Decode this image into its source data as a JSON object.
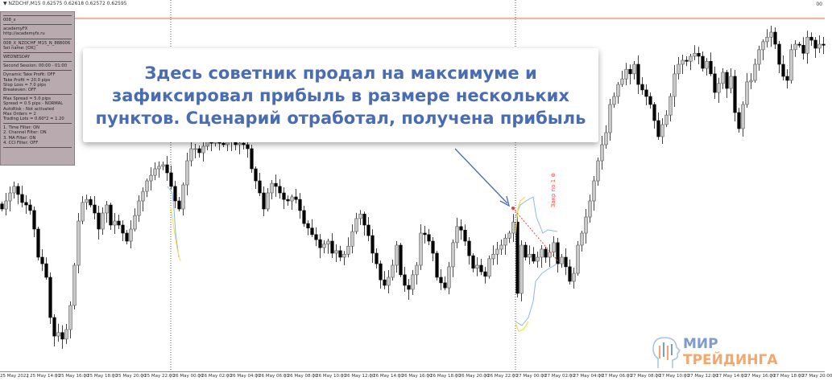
{
  "header": {
    "symbol_label": "▼ NZDCHF,M15  0.62575 0.62618 0.62572 0.62595",
    "top_right": "00"
  },
  "panel": {
    "lines_a": [
      "008_x"
    ],
    "lines_b": [
      "academyFX",
      "http://academyfx.ru"
    ],
    "lines_c": [
      "008_X_NZDCHF_M15_N_888006",
      "Set name: [OK]"
    ],
    "lines_d": [
      "WEDNESDAY"
    ],
    "lines_e": [
      "Second Session: 00:00 - 01:00"
    ],
    "lines_f": [
      "Dynamic Take Profit: OFF",
      "Take Profit = 20.0 pips",
      "Stop Loss = 7.0 pips",
      "Breakeven: OFF"
    ],
    "lines_g": [
      "Max Spread = 5.0 pips",
      "Spread = 0.5 pips - NORMAL",
      "AutoRisk - Not activated",
      "Max Orders = 2",
      "Trading Lots = 0.60*2 = 1.20"
    ],
    "lines_h": [
      "1. Time Filter: ON",
      "2. Channel Filter: ON",
      "3. MA Filter: ON",
      "4. CCI Filter: OFF"
    ]
  },
  "callout": {
    "text": "Здесь советник продал на максимуме и зафиксировал прибыль в размере нескольких пунктов. Сценарий отработал, получена прибыль"
  },
  "trade_tag": "Закр по 1 ⊕",
  "logo": {
    "line1": "МИР",
    "line2": "ТРЕЙДИНГА"
  },
  "colors": {
    "bull": "#c8c8c8",
    "bear": "#000000",
    "level_line": "#f08060",
    "callout_text": "#4a6cb3",
    "arrow": "#4a6cb3",
    "indicator_yellow": "#f5e04a",
    "indicator_blue": "#8fb4f0",
    "trade_line": "#ff4040"
  },
  "chart_data": {
    "type": "candlestick",
    "symbol": "NZDCHF",
    "timeframe": "M15",
    "ylim": [
      0.61946,
      0.6265
    ],
    "grid": false,
    "x_tick_labels": [
      "25 May 2022",
      "25 May 14:00",
      "25 May 16:00",
      "25 May 18:00",
      "25 May 20:00",
      "25 May 22:00",
      "26 May 00:00",
      "26 May 02:00",
      "26 May 04:00",
      "26 May 06:00",
      "26 May 08:00",
      "26 May 10:00",
      "26 May 12:00",
      "26 May 14:00",
      "26 May 16:00",
      "26 May 18:00",
      "26 May 20:00",
      "26 May 22:00",
      "27 May 00:00",
      "27 May 02:00",
      "27 May 04:00",
      "27 May 06:00",
      "27 May 08:00",
      "27 May 10:00",
      "27 May 12:00",
      "27 May 14:00",
      "27 May 16:00",
      "27 May 18:00",
      "27 May 20:00"
    ],
    "close": [
      0.62258,
      0.62274,
      0.6229,
      0.62303,
      0.62287,
      0.62271,
      0.62266,
      0.62255,
      0.62218,
      0.62162,
      0.62149,
      0.62122,
      0.62042,
      0.62005,
      0.62012,
      0.61999,
      0.62018,
      0.62066,
      0.62146,
      0.62234,
      0.62271,
      0.62277,
      0.62266,
      0.6225,
      0.62218,
      0.6225,
      0.62266,
      0.62226,
      0.62234,
      0.62226,
      0.6221,
      0.62194,
      0.62218,
      0.62245,
      0.62274,
      0.62293,
      0.62314,
      0.62325,
      0.62338,
      0.62343,
      0.62346,
      0.6233,
      0.62303,
      0.62274,
      0.62258,
      0.62306,
      0.62354,
      0.62378,
      0.62378,
      0.6237,
      0.62383,
      0.62405,
      0.62389,
      0.62394,
      0.62389,
      0.62386,
      0.62402,
      0.62394,
      0.62386,
      0.62389,
      0.62386,
      0.62378,
      0.62338,
      0.62314,
      0.6229,
      0.62258,
      0.6229,
      0.62309,
      0.62303,
      0.6229,
      0.62277,
      0.62274,
      0.62282,
      0.62277,
      0.62255,
      0.62229,
      0.6222,
      0.62207,
      0.62197,
      0.62181,
      0.62188,
      0.62194,
      0.6217,
      0.62175,
      0.62162,
      0.62168,
      0.62184,
      0.62213,
      0.62239,
      0.62248,
      0.62226,
      0.62205,
      0.6217,
      0.62149,
      0.62117,
      0.62106,
      0.62122,
      0.62146,
      0.62186,
      0.62127,
      0.62106,
      0.62098,
      0.62127,
      0.62146,
      0.6221,
      0.62207,
      0.62194,
      0.6217,
      0.62122,
      0.62111,
      0.62101,
      0.62143,
      0.62191,
      0.62223,
      0.62216,
      0.62194,
      0.62165,
      0.6214,
      0.62146,
      0.62133,
      0.62124,
      0.62159,
      0.62168,
      0.62178,
      0.62186,
      0.622,
      0.6221,
      0.62232,
      0.6209,
      0.62186,
      0.62162,
      0.62168,
      0.62154,
      0.62162,
      0.62178,
      0.62162,
      0.62172,
      0.62191,
      0.62149,
      0.62162,
      0.62143,
      0.62114,
      0.6213,
      0.62186,
      0.6221,
      0.62242,
      0.62274,
      0.62314,
      0.62354,
      0.62386,
      0.6241,
      0.62466,
      0.62482,
      0.62506,
      0.62517,
      0.62536,
      0.62527,
      0.62546,
      0.62506,
      0.62495,
      0.62482,
      0.62466,
      0.62434,
      0.62402,
      0.62426,
      0.62445,
      0.62482,
      0.62527,
      0.62546,
      0.62554,
      0.62552,
      0.62562,
      0.62568,
      0.62562,
      0.62538,
      0.62552,
      0.62527,
      0.6249,
      0.62508,
      0.6253,
      0.62498,
      0.62522,
      0.6245,
      0.62418,
      0.62466,
      0.62511,
      0.62514,
      0.62546,
      0.62575,
      0.62591,
      0.626,
      0.6261,
      0.62586,
      0.62546,
      0.62522,
      0.62514,
      0.62575,
      0.62586,
      0.62584,
      0.62568,
      0.626,
      0.62594,
      0.62578,
      0.62586,
      0.62584
    ]
  }
}
